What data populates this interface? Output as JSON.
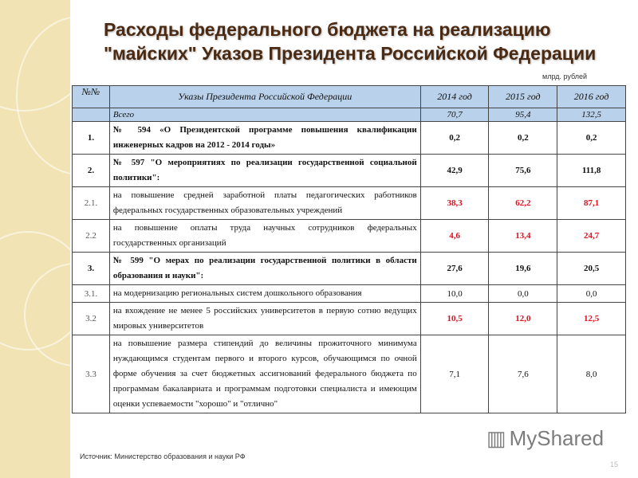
{
  "title": "Расходы федерального бюджета на реализацию \"майских\" Указов Президента Российской Федерации",
  "unit": "млрд. рублей",
  "table": {
    "headers": [
      "№№",
      "Указы Президента Российской Федерации",
      "2014 год",
      "2015 год",
      "2016 год"
    ],
    "total": {
      "label": "Всего",
      "values": [
        "70,7",
        "95,4",
        "132,5"
      ]
    },
    "rows": [
      {
        "num": "1.",
        "text": "№ 594 «О Президентской программе повышения квалификации инженерных кадров на 2012 - 2014 годы»",
        "values": [
          "0,2",
          "0,2",
          "0,2"
        ]
      },
      {
        "num": "2.",
        "text": "№ 597 \"О мероприятиях по реализации государственной социальной политики\":",
        "values": [
          "42,9",
          "75,6",
          "111,8"
        ]
      },
      {
        "num": "2.1.",
        "text": "на повышение средней заработной платы педагогических работников федеральных государственных образовательных учреждений",
        "values": [
          "38,3",
          "62,2",
          "87,1"
        ]
      },
      {
        "num": "2.2",
        "text": "на повышение оплаты труда научных сотрудников федеральных государственных организаций",
        "values": [
          "4,6",
          "13,4",
          "24,7"
        ]
      },
      {
        "num": "3.",
        "text": "№ 599 \"О мерах по реализации государственной политики в области образования и науки\":",
        "values": [
          "27,6",
          "19,6",
          "20,5"
        ]
      },
      {
        "num": "3.1.",
        "text": "на модернизацию региональных систем дошкольного образования",
        "values": [
          "10,0",
          "0,0",
          "0,0"
        ]
      },
      {
        "num": "3.2",
        "text": "на вхождение не менее 5 российских университетов в первую сотню ведущих мировых университетов",
        "values": [
          "10,5",
          "12,0",
          "12,5"
        ]
      },
      {
        "num": "3.3",
        "text": "на повышение размера стипендий до величины прожиточного минимума нуждающимся студентам первого и второго курсов, обучающимся по очной форме обучения за счет бюджетных ассигнований федерального бюджета по программам бакалавриата и программам подготовки специалиста и имеющим оценки успеваемости \"хорошо\" и \"отлично\"",
        "values": [
          "7,1",
          "7,6",
          "8,0"
        ]
      }
    ]
  },
  "source": "Источник: Министерство образования и науки РФ",
  "page_number": "15",
  "watermark": "MyShared",
  "colors": {
    "header_bg": "#b9d1ea",
    "highlight": "#e0101e",
    "title": "#4a2a12"
  }
}
